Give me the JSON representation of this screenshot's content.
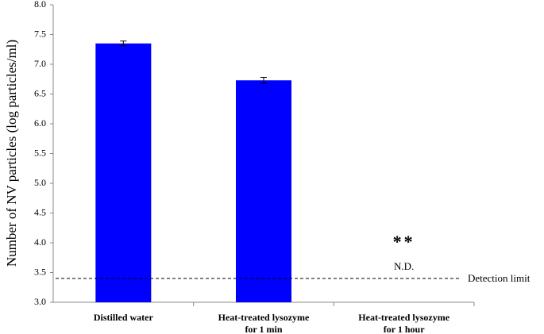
{
  "chart_data": {
    "type": "bar",
    "y_label": "Number of NV particles (log particles/ml)",
    "categories": [
      "Distilled water",
      "Heat-treated lysozyme\nfor 1 min",
      "Heat-treated lysozyme\nfor 1 hour"
    ],
    "values": [
      7.35,
      6.73,
      null
    ],
    "errors": [
      0.04,
      0.05,
      null
    ],
    "color": "#0000ff",
    "ylim": [
      3,
      8
    ],
    "yticks": [
      {
        "value": 3,
        "label": "3.0"
      },
      {
        "value": 3.5,
        "label": "3.5"
      },
      {
        "value": 4,
        "label": "4.0"
      },
      {
        "value": 4.5,
        "label": "4.5"
      },
      {
        "value": 5,
        "label": "5.0"
      },
      {
        "value": 5.5,
        "label": "5.5"
      },
      {
        "value": 6,
        "label": "6.0"
      },
      {
        "value": 6.5,
        "label": "6.5"
      },
      {
        "value": 7,
        "label": "7.0"
      },
      {
        "value": 7.5,
        "label": "7.5"
      },
      {
        "value": 8,
        "label": "8.0"
      }
    ],
    "detection_limit": {
      "value": 3.4,
      "label": "Detection limit"
    },
    "annotations": {
      "significance": "**",
      "not_detected": "N.D."
    }
  }
}
